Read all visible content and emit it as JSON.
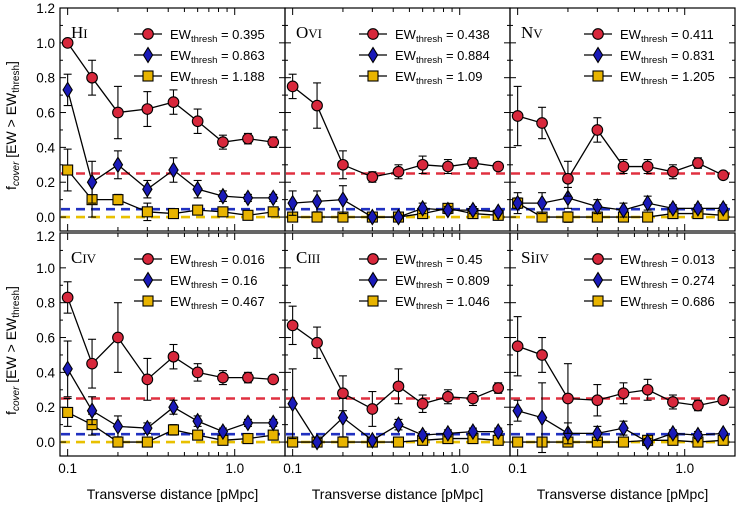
{
  "chart_data": {
    "type": "scatter",
    "layout": "2x3 grid",
    "xlabel": "Transverse distance [pMpc]",
    "ylabel": "f_cover [EW > EW_thresh]",
    "xscale": "log",
    "xlim": [
      0.09,
      2.0
    ],
    "ylim": [
      -0.08,
      1.2
    ],
    "x_tick_labels": [
      "0.1",
      "1.0"
    ],
    "y_tick_labels": [
      "0.0",
      "0.2",
      "0.4",
      "0.6",
      "0.8",
      "1.0",
      "1.2"
    ],
    "reference_lines": [
      {
        "name": "red-dashed",
        "y": 0.25,
        "color": "#e03040"
      },
      {
        "name": "blue-dashed",
        "y": 0.045,
        "color": "#2030c0"
      },
      {
        "name": "yellow-dashed",
        "y": 0.0,
        "color": "#e8c000"
      }
    ],
    "x": [
      0.1,
      0.14,
      0.2,
      0.3,
      0.43,
      0.6,
      0.85,
      1.2,
      1.7
    ],
    "series_styles": [
      {
        "marker": "circle",
        "color": "#d8283c"
      },
      {
        "marker": "diamond",
        "color": "#1a1ab8"
      },
      {
        "marker": "square",
        "color": "#e8b400"
      }
    ],
    "panels": [
      {
        "ion": "H",
        "ion_stage": "I",
        "series": [
          {
            "thresh": "0.395",
            "values": [
              1.0,
              0.8,
              0.6,
              0.62,
              0.66,
              0.55,
              0.43,
              0.45,
              0.43
            ],
            "errors": [
              0,
              0.1,
              0.15,
              0.1,
              0.07,
              0.07,
              0.04,
              0.03,
              0.03
            ]
          },
          {
            "thresh": "0.863",
            "values": [
              0.73,
              0.2,
              0.3,
              0.16,
              0.27,
              0.16,
              0.12,
              0.11,
              0.11
            ],
            "errors": [
              0.09,
              0.12,
              0.08,
              0.05,
              0.07,
              0.05,
              0.03,
              0.02,
              0.02
            ]
          },
          {
            "thresh": "1.188",
            "values": [
              0.27,
              0.1,
              0.1,
              0.03,
              0.02,
              0.04,
              0.03,
              0.01,
              0.03
            ],
            "errors": [
              0.12,
              0.1,
              0.03,
              0.05,
              0.01,
              0.02,
              0.01,
              0.01,
              0.01
            ]
          }
        ]
      },
      {
        "ion": "O",
        "ion_stage": "VI",
        "series": [
          {
            "thresh": "0.438",
            "values": [
              0.75,
              0.64,
              0.3,
              0.23,
              0.26,
              0.3,
              0.29,
              0.31,
              0.29
            ],
            "errors": [
              0.07,
              0.13,
              0.08,
              0.03,
              0.04,
              0.05,
              0.04,
              0.03,
              0.02
            ]
          },
          {
            "thresh": "0.884",
            "values": [
              0.08,
              0.09,
              0.1,
              0.0,
              0.0,
              0.05,
              0.04,
              0.04,
              0.03
            ],
            "errors": [
              0.07,
              0.06,
              0.08,
              0.01,
              0.01,
              0.03,
              0.02,
              0.02,
              0.01
            ]
          },
          {
            "thresh": "1.09",
            "values": [
              0.0,
              0.0,
              0.0,
              0.0,
              0.0,
              0.02,
              0.05,
              0.02,
              0.01
            ],
            "errors": [
              0.0,
              0.0,
              0.0,
              0.01,
              0.01,
              0.02,
              0.02,
              0.02,
              0.01
            ]
          }
        ]
      },
      {
        "ion": "N",
        "ion_stage": "V",
        "series": [
          {
            "thresh": "0.411",
            "values": [
              0.58,
              0.54,
              0.22,
              0.5,
              0.29,
              0.29,
              0.26,
              0.31,
              0.24
            ],
            "errors": [
              0.17,
              0.09,
              0.1,
              0.07,
              0.04,
              0.04,
              0.04,
              0.03,
              0.02
            ]
          },
          {
            "thresh": "0.831",
            "values": [
              0.08,
              0.08,
              0.11,
              0.06,
              0.04,
              0.08,
              0.05,
              0.05,
              0.05
            ],
            "errors": [
              0.06,
              0.06,
              0.06,
              0.04,
              0.04,
              0.04,
              0.02,
              0.02,
              0.02
            ]
          },
          {
            "thresh": "1.205",
            "values": [
              0.08,
              0.0,
              0.0,
              0.0,
              0.0,
              0.0,
              0.02,
              0.02,
              0.01
            ],
            "errors": [
              0.03,
              0.0,
              0.03,
              0.01,
              0.01,
              0.02,
              0.01,
              0.01,
              0.01
            ]
          }
        ]
      },
      {
        "ion": "C",
        "ion_stage": "IV",
        "series": [
          {
            "thresh": "0.016",
            "values": [
              0.83,
              0.45,
              0.6,
              0.36,
              0.49,
              0.4,
              0.37,
              0.37,
              0.36
            ],
            "errors": [
              0.09,
              0.14,
              0.2,
              0.12,
              0.07,
              0.05,
              0.04,
              0.03,
              0.02
            ]
          },
          {
            "thresh": "0.16",
            "values": [
              0.42,
              0.18,
              0.09,
              0.08,
              0.2,
              0.12,
              0.06,
              0.11,
              0.11
            ],
            "errors": [
              0.16,
              0.08,
              0.06,
              0.03,
              0.04,
              0.03,
              0.02,
              0.02,
              0.02
            ]
          },
          {
            "thresh": "0.467",
            "values": [
              0.17,
              0.1,
              0.0,
              0.0,
              0.07,
              0.04,
              0.01,
              0.02,
              0.04
            ],
            "errors": [
              0.08,
              0.06,
              0.0,
              0.01,
              0.03,
              0.02,
              0.01,
              0.01,
              0.02
            ]
          }
        ]
      },
      {
        "ion": "C",
        "ion_stage": "III",
        "series": [
          {
            "thresh": "0.45",
            "values": [
              0.67,
              0.57,
              0.28,
              0.19,
              0.32,
              0.22,
              0.26,
              0.25,
              0.31
            ],
            "errors": [
              0.11,
              0.09,
              0.1,
              0.1,
              0.1,
              0.05,
              0.04,
              0.04,
              0.03
            ]
          },
          {
            "thresh": "0.809",
            "values": [
              0.22,
              0.0,
              0.14,
              0.01,
              0.1,
              0.04,
              0.05,
              0.06,
              0.06
            ],
            "errors": [
              0.2,
              0.0,
              0.11,
              0.01,
              0.03,
              0.02,
              0.02,
              0.02,
              0.02
            ]
          },
          {
            "thresh": "1.046",
            "values": [
              0.0,
              0.0,
              0.0,
              0.0,
              0.0,
              0.01,
              0.02,
              0.02,
              0.01
            ],
            "errors": [
              0.0,
              0.0,
              0.0,
              0.0,
              0.0,
              0.02,
              0.02,
              0.01,
              0.01
            ]
          }
        ]
      },
      {
        "ion": "Si",
        "ion_stage": "IV",
        "series": [
          {
            "thresh": "0.013",
            "values": [
              0.55,
              0.5,
              0.25,
              0.24,
              0.28,
              0.3,
              0.23,
              0.21,
              0.24
            ],
            "errors": [
              0.17,
              0.1,
              0.2,
              0.09,
              0.06,
              0.06,
              0.04,
              0.03,
              0.02
            ]
          },
          {
            "thresh": "0.274",
            "values": [
              0.18,
              0.14,
              0.05,
              0.05,
              0.08,
              0.0,
              0.05,
              0.04,
              0.05
            ],
            "errors": [
              0.06,
              0.2,
              0.06,
              0.04,
              0.04,
              0.02,
              0.02,
              0.02,
              0.01
            ]
          },
          {
            "thresh": "0.686",
            "values": [
              0.0,
              0.0,
              0.0,
              0.0,
              0.0,
              0.01,
              0.01,
              0.0,
              0.01
            ],
            "errors": [
              0.0,
              0.0,
              0.0,
              0.0,
              0.0,
              0.01,
              0.01,
              0.01,
              0.01
            ]
          }
        ]
      }
    ]
  }
}
